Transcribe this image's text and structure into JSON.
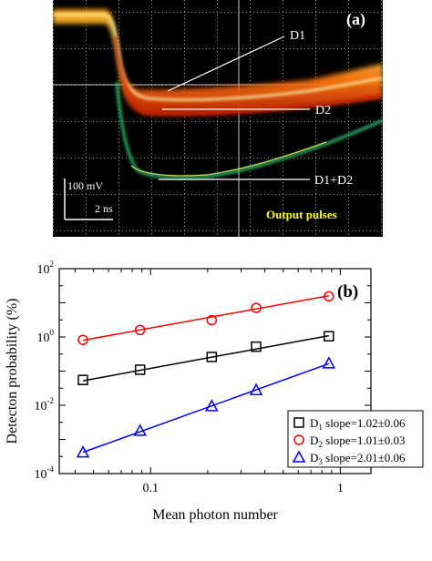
{
  "panel_a": {
    "label": "(a)",
    "scale_voltage": "100 mV",
    "scale_time": "2 ns",
    "caption": "Output pulses",
    "traces": [
      {
        "label": "D1",
        "color": "#e86010"
      },
      {
        "label": "D2",
        "color": "#e86010"
      },
      {
        "label": "D1+D2",
        "color": "#3fbf6f"
      }
    ],
    "colors": {
      "background": "#000000",
      "grid": "#8a8a8a",
      "caption": "#ffff00"
    }
  },
  "chart_data": {
    "type": "scatter",
    "panel_label": "(b)",
    "xlabel": "Mean photon number",
    "ylabel": "Detecton probability (%)",
    "xscale": "log",
    "yscale": "log",
    "xlim": [
      0.033,
      1.45
    ],
    "ylim": [
      0.0001,
      100
    ],
    "x_ticks": [
      {
        "value": 0.1,
        "label": "0.1"
      },
      {
        "value": 1,
        "label": "1"
      }
    ],
    "y_ticks": [
      {
        "value": 0.0001,
        "base": "10",
        "exp": "-4"
      },
      {
        "value": 0.01,
        "base": "10",
        "exp": "-2"
      },
      {
        "value": 1,
        "base": "10",
        "exp": "0"
      },
      {
        "value": 100,
        "base": "10",
        "exp": "2"
      }
    ],
    "legend_position": "bottom-right",
    "series": [
      {
        "name": "D",
        "subscript": "1",
        "slope_text": " slope=1.02±0.06",
        "marker": "square",
        "color": "#000000",
        "x": [
          0.044,
          0.088,
          0.21,
          0.36,
          0.87
        ],
        "y": [
          0.055,
          0.11,
          0.26,
          0.52,
          1.05
        ],
        "fit": [
          [
            0.044,
            0.052
          ],
          [
            0.87,
            1.09
          ]
        ]
      },
      {
        "name": "D",
        "subscript": "2",
        "slope_text": " slope=1.01±0.03",
        "marker": "circle",
        "color": "#ff0000",
        "x": [
          0.044,
          0.088,
          0.21,
          0.36,
          0.87
        ],
        "y": [
          0.82,
          1.6,
          3.1,
          7.1,
          15.5
        ],
        "fit": [
          [
            0.044,
            0.8
          ],
          [
            0.87,
            16.1
          ]
        ]
      },
      {
        "name": "D",
        "subscript": "3",
        "slope_text": " slope=2.01±0.06",
        "marker": "triangle",
        "color": "#0000ff",
        "x": [
          0.044,
          0.088,
          0.21,
          0.36,
          0.87
        ],
        "y": [
          0.00042,
          0.0018,
          0.0095,
          0.028,
          0.17
        ],
        "fit": [
          [
            0.044,
            0.00042
          ],
          [
            0.87,
            0.165
          ]
        ]
      }
    ]
  }
}
